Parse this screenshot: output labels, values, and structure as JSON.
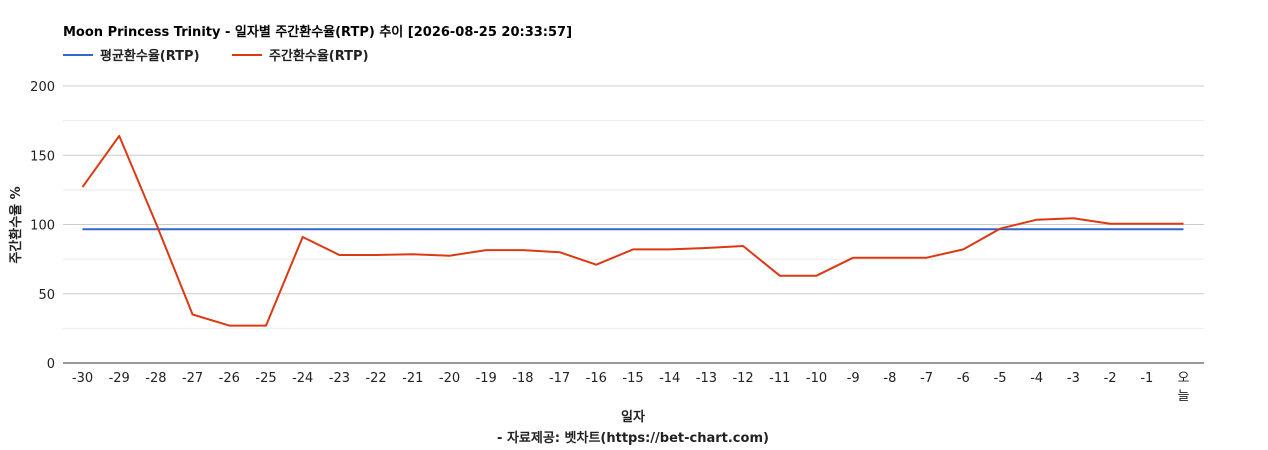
{
  "chart_data": {
    "type": "line",
    "title": "Moon Princess Trinity - 일자별 주간환수율(RTP) 추이 [2026-08-25 20:33:57]",
    "xlabel": "일자",
    "ylabel": "주간환수율 %",
    "footer": "- 자료제공: 벳차트(https://bet-chart.com)",
    "ylim": [
      0,
      200
    ],
    "yticks": [
      "0",
      "50",
      "100",
      "150",
      "200"
    ],
    "categories": [
      "-30",
      "-29",
      "-28",
      "-27",
      "-26",
      "-25",
      "-24",
      "-23",
      "-22",
      "-21",
      "-20",
      "-19",
      "-18",
      "-17",
      "-16",
      "-15",
      "-14",
      "-13",
      "-12",
      "-11",
      "-10",
      "-9",
      "-8",
      "-7",
      "-6",
      "-5",
      "-4",
      "-3",
      "-2",
      "-1",
      "오늘"
    ],
    "legend_position": "top-left",
    "grid": true,
    "series": [
      {
        "name": "평균환수율(RTP)",
        "color": "#3366cc",
        "values": [
          96.5,
          96.5,
          96.5,
          96.5,
          96.5,
          96.5,
          96.5,
          96.5,
          96.5,
          96.5,
          96.5,
          96.5,
          96.5,
          96.5,
          96.5,
          96.5,
          96.5,
          96.5,
          96.5,
          96.5,
          96.5,
          96.5,
          96.5,
          96.5,
          96.5,
          96.5,
          96.5,
          96.5,
          96.5,
          96.5,
          96.5
        ]
      },
      {
        "name": "주간환수율(RTP)",
        "color": "#dc3912",
        "values": [
          127,
          164,
          101,
          35,
          27,
          27,
          91,
          78,
          78,
          78.5,
          77.5,
          81.5,
          81.5,
          80,
          71,
          82,
          82,
          83,
          84.5,
          63,
          63,
          76,
          76,
          76,
          82,
          97,
          103.5,
          104.5,
          100.5,
          100.5,
          100.5
        ]
      }
    ]
  }
}
